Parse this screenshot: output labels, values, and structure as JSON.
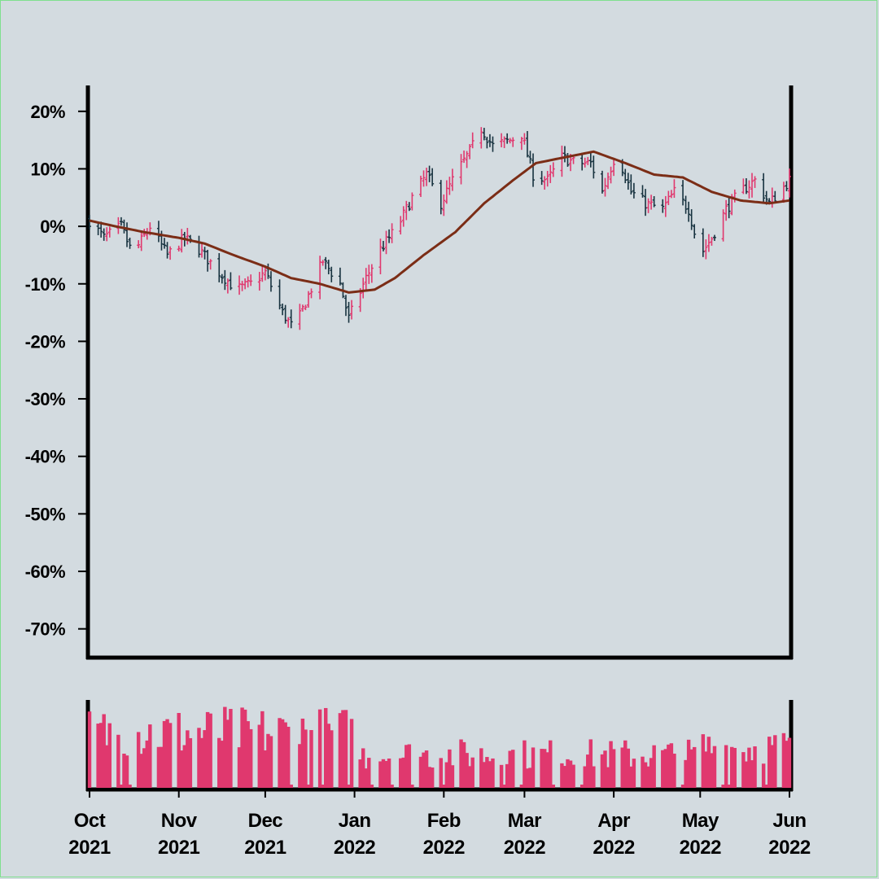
{
  "chart_data": [
    {
      "type": "ohlc",
      "title": "",
      "xlabel": "",
      "ylabel": "",
      "y_tick_labels": [
        "20%",
        "10%",
        "0%",
        "-10%",
        "-20%",
        "-30%",
        "-40%",
        "-50%",
        "-60%",
        "-70%"
      ],
      "ylim": [
        -0.75,
        0.245
      ],
      "x_range": [
        "2021-10-01",
        "2022-06-01"
      ],
      "colors": {
        "up": "#e0386e",
        "down": "#17323f",
        "moving_average": "#7b2d16",
        "volume": "#e0386e"
      },
      "series": [
        {
          "name": "",
          "description": "approximate cumulative return path (close values, read at anchor dates)",
          "points": [
            {
              "date": "2021-10-01",
              "value": 0.01
            },
            {
              "date": "2021-10-06",
              "value": -0.02
            },
            {
              "date": "2021-10-12",
              "value": 0.0
            },
            {
              "date": "2021-10-16",
              "value": -0.05
            },
            {
              "date": "2021-10-22",
              "value": 0.0
            },
            {
              "date": "2021-10-28",
              "value": -0.05
            },
            {
              "date": "2021-11-03",
              "value": -0.02
            },
            {
              "date": "2021-11-08",
              "value": -0.04
            },
            {
              "date": "2021-11-15",
              "value": -0.08
            },
            {
              "date": "2021-11-21",
              "value": -0.11
            },
            {
              "date": "2021-11-26",
              "value": -0.1
            },
            {
              "date": "2021-12-01",
              "value": -0.08
            },
            {
              "date": "2021-12-07",
              "value": -0.15
            },
            {
              "date": "2021-12-11",
              "value": -0.18
            },
            {
              "date": "2021-12-16",
              "value": -0.12
            },
            {
              "date": "2021-12-21",
              "value": -0.06
            },
            {
              "date": "2021-12-27",
              "value": -0.1
            },
            {
              "date": "2021-12-30",
              "value": -0.16
            },
            {
              "date": "2022-01-05",
              "value": -0.09
            },
            {
              "date": "2022-01-10",
              "value": -0.04
            },
            {
              "date": "2022-01-16",
              "value": 0.0
            },
            {
              "date": "2022-01-21",
              "value": 0.05
            },
            {
              "date": "2022-01-26",
              "value": 0.09
            },
            {
              "date": "2022-01-31",
              "value": 0.04
            },
            {
              "date": "2022-02-05",
              "value": 0.09
            },
            {
              "date": "2022-02-10",
              "value": 0.13
            },
            {
              "date": "2022-02-14",
              "value": 0.17
            },
            {
              "date": "2022-02-18",
              "value": 0.14
            },
            {
              "date": "2022-02-24",
              "value": 0.15
            },
            {
              "date": "2022-02-28",
              "value": 0.16
            },
            {
              "date": "2022-03-04",
              "value": 0.09
            },
            {
              "date": "2022-03-09",
              "value": 0.08
            },
            {
              "date": "2022-03-14",
              "value": 0.12
            },
            {
              "date": "2022-03-19",
              "value": 0.11
            },
            {
              "date": "2022-03-24",
              "value": 0.11
            },
            {
              "date": "2022-03-28",
              "value": 0.06
            },
            {
              "date": "2022-04-02",
              "value": 0.13
            },
            {
              "date": "2022-04-07",
              "value": 0.06
            },
            {
              "date": "2022-04-12",
              "value": 0.04
            },
            {
              "date": "2022-04-18",
              "value": 0.03
            },
            {
              "date": "2022-04-22",
              "value": 0.06
            },
            {
              "date": "2022-04-27",
              "value": 0.03
            },
            {
              "date": "2022-05-01",
              "value": -0.05
            },
            {
              "date": "2022-05-05",
              "value": -0.02
            },
            {
              "date": "2022-05-10",
              "value": 0.03
            },
            {
              "date": "2022-05-15",
              "value": 0.06
            },
            {
              "date": "2022-05-20",
              "value": 0.08
            },
            {
              "date": "2022-05-25",
              "value": 0.04
            },
            {
              "date": "2022-06-01",
              "value": 0.08
            }
          ]
        },
        {
          "name": "",
          "description": "moving average line",
          "points": [
            {
              "date": "2021-10-01",
              "value": 0.01
            },
            {
              "date": "2021-10-10",
              "value": 0.0
            },
            {
              "date": "2021-10-20",
              "value": -0.01
            },
            {
              "date": "2021-11-01",
              "value": -0.02
            },
            {
              "date": "2021-11-10",
              "value": -0.03
            },
            {
              "date": "2021-11-20",
              "value": -0.05
            },
            {
              "date": "2021-12-01",
              "value": -0.07
            },
            {
              "date": "2021-12-10",
              "value": -0.09
            },
            {
              "date": "2021-12-20",
              "value": -0.1
            },
            {
              "date": "2021-12-30",
              "value": -0.115
            },
            {
              "date": "2022-01-08",
              "value": -0.11
            },
            {
              "date": "2022-01-15",
              "value": -0.09
            },
            {
              "date": "2022-01-25",
              "value": -0.05
            },
            {
              "date": "2022-02-05",
              "value": -0.01
            },
            {
              "date": "2022-02-15",
              "value": 0.04
            },
            {
              "date": "2022-02-25",
              "value": 0.08
            },
            {
              "date": "2022-03-05",
              "value": 0.11
            },
            {
              "date": "2022-03-15",
              "value": 0.12
            },
            {
              "date": "2022-03-25",
              "value": 0.13
            },
            {
              "date": "2022-04-05",
              "value": 0.11
            },
            {
              "date": "2022-04-15",
              "value": 0.09
            },
            {
              "date": "2022-04-25",
              "value": 0.085
            },
            {
              "date": "2022-05-05",
              "value": 0.06
            },
            {
              "date": "2022-05-15",
              "value": 0.045
            },
            {
              "date": "2022-05-25",
              "value": 0.04
            },
            {
              "date": "2022-06-01",
              "value": 0.045
            }
          ]
        }
      ]
    },
    {
      "type": "bar",
      "title": "",
      "description": "volume bars",
      "x_tick_labels": [
        {
          "month": "Oct",
          "year": "2021"
        },
        {
          "month": "Nov",
          "year": "2021"
        },
        {
          "month": "Dec",
          "year": "2021"
        },
        {
          "month": "Jan",
          "year": "2022"
        },
        {
          "month": "Feb",
          "year": "2022"
        },
        {
          "month": "Mar",
          "year": "2022"
        },
        {
          "month": "Apr",
          "year": "2022"
        },
        {
          "month": "May",
          "year": "2022"
        },
        {
          "month": "Jun",
          "year": "2022"
        }
      ],
      "volume_level_by_period": [
        {
          "from": "2021-10-01",
          "to": "2021-12-31",
          "relative_level": 0.75
        },
        {
          "from": "2022-01-01",
          "to": "2022-04-30",
          "relative_level": 0.45
        },
        {
          "from": "2022-05-01",
          "to": "2022-06-01",
          "relative_level": 0.55
        }
      ]
    }
  ]
}
